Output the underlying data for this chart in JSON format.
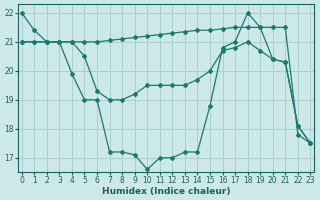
{
  "xlabel": "Humidex (Indice chaleur)",
  "xlim": [
    -0.3,
    23.3
  ],
  "ylim": [
    16.5,
    22.3
  ],
  "xticks": [
    0,
    1,
    2,
    3,
    4,
    5,
    6,
    7,
    8,
    9,
    10,
    11,
    12,
    13,
    14,
    15,
    16,
    17,
    18,
    19,
    20,
    21,
    22,
    23
  ],
  "yticks": [
    17,
    18,
    19,
    20,
    21,
    22
  ],
  "background_color": "#cce8e8",
  "grid_color": "#aacece",
  "line_color": "#1a7a6e",
  "line1_y": [
    22.0,
    21.4,
    21.0,
    21.0,
    19.9,
    19.0,
    19.0,
    17.2,
    17.2,
    17.1,
    16.6,
    17.0,
    17.0,
    17.2,
    17.2,
    18.8,
    20.8,
    21.0,
    22.0,
    21.5,
    20.4,
    20.3,
    18.1,
    17.5
  ],
  "line2_y": [
    21.0,
    21.0,
    21.0,
    21.0,
    21.0,
    21.0,
    21.0,
    21.05,
    21.1,
    21.15,
    21.2,
    21.25,
    21.3,
    21.35,
    21.4,
    21.4,
    21.45,
    21.5,
    21.5,
    21.5,
    21.5,
    21.5,
    17.8,
    17.5
  ],
  "line3_y": [
    21.0,
    21.0,
    21.0,
    21.0,
    21.0,
    20.5,
    19.3,
    19.0,
    19.0,
    19.2,
    19.5,
    19.5,
    19.5,
    19.5,
    19.7,
    20.0,
    20.7,
    20.8,
    21.0,
    20.7,
    20.4,
    20.3,
    18.1,
    17.5
  ]
}
